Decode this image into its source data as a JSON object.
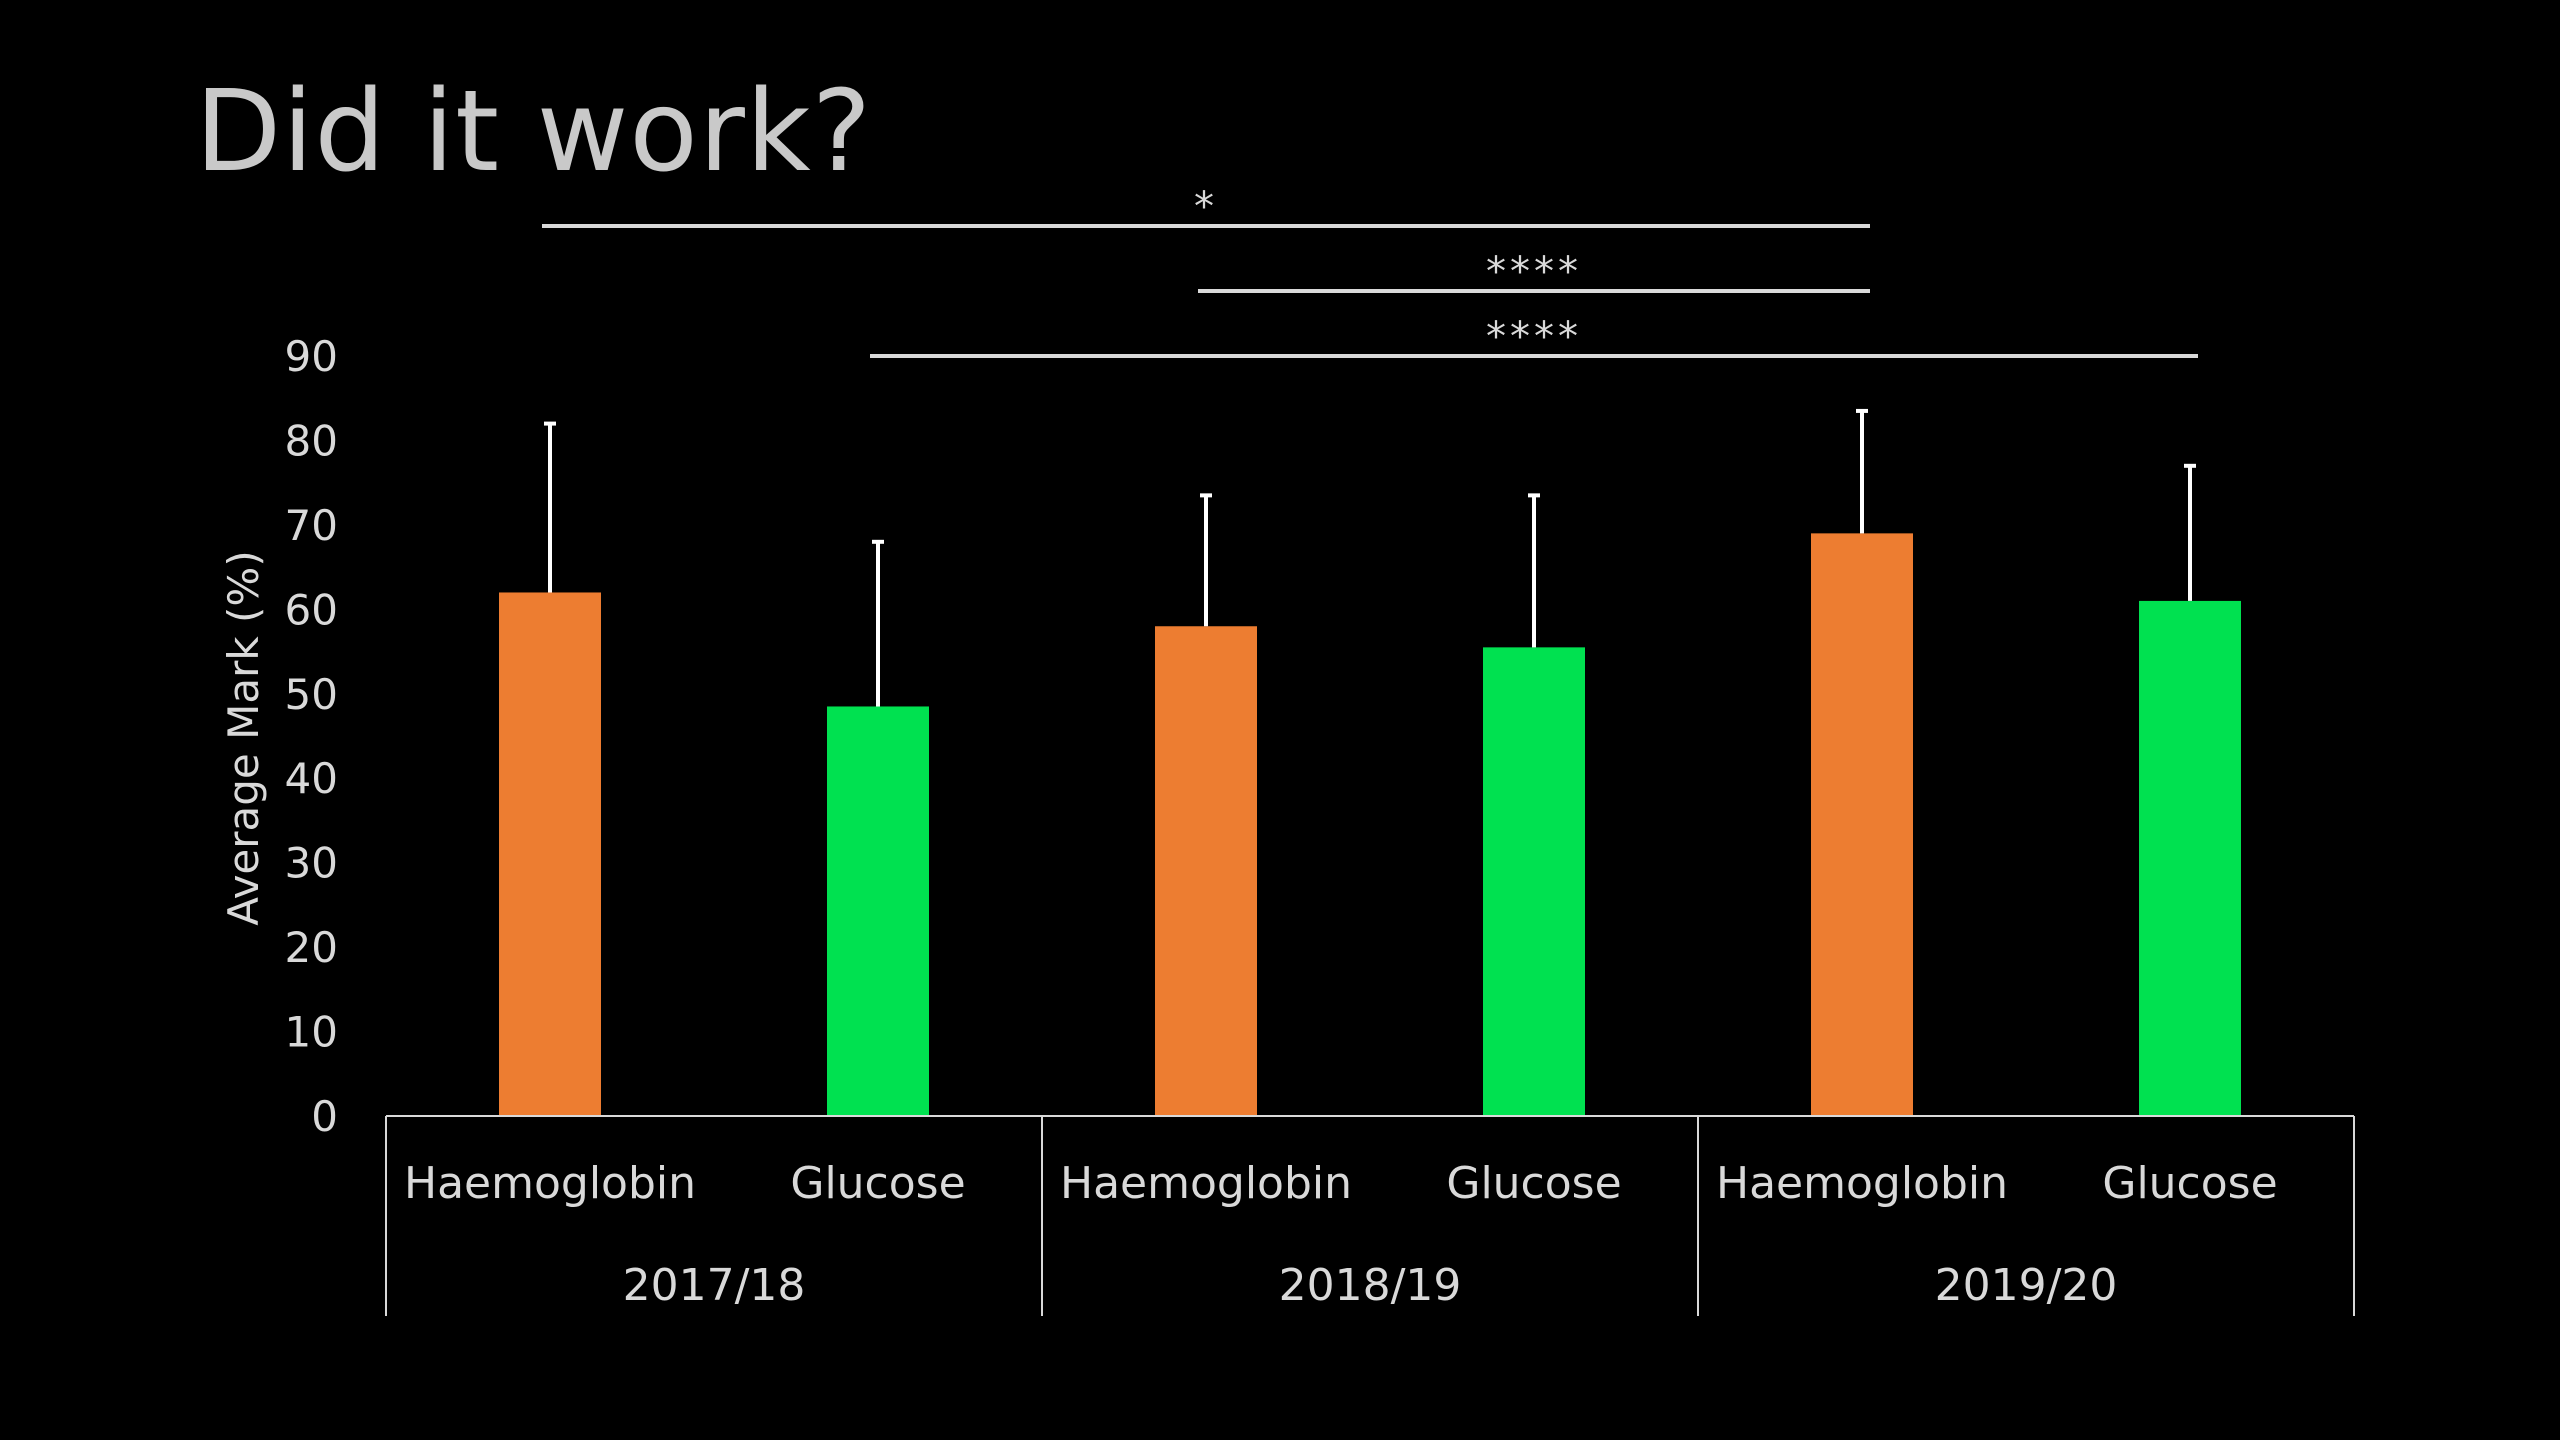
{
  "slide": {
    "title": "Did it work?"
  },
  "colors": {
    "background": "#000000",
    "haemoglobin": "#ed7d31",
    "glucose": "#00e150",
    "axis": "#d9d9d9",
    "text": "#d9d9d9",
    "title": "#c9c9c9"
  },
  "chart_data": {
    "type": "bar",
    "ylabel": "Average Mark (%)",
    "ylim": [
      0,
      90
    ],
    "yticks": [
      0,
      10,
      20,
      30,
      40,
      50,
      60,
      70,
      80,
      90
    ],
    "grid": false,
    "legend": "none",
    "groups": [
      "2017/18",
      "2018/19",
      "2019/20"
    ],
    "bars": [
      {
        "group": "2017/18",
        "category": "Haemoglobin",
        "value": 62,
        "error": 20,
        "color": "#ed7d31"
      },
      {
        "group": "2017/18",
        "category": "Glucose",
        "value": 48.5,
        "error": 19.5,
        "color": "#00e150"
      },
      {
        "group": "2018/19",
        "category": "Haemoglobin",
        "value": 58,
        "error": 15.5,
        "color": "#ed7d31"
      },
      {
        "group": "2018/19",
        "category": "Glucose",
        "value": 55.5,
        "error": 18,
        "color": "#00e150"
      },
      {
        "group": "2019/20",
        "category": "Haemoglobin",
        "value": 69,
        "error": 14.5,
        "color": "#ed7d31"
      },
      {
        "group": "2019/20",
        "category": "Glucose",
        "value": 61,
        "error": 16,
        "color": "#00e150"
      }
    ],
    "significance": [
      {
        "from": 0,
        "to": 4,
        "label": "*"
      },
      {
        "from": 2,
        "to": 4,
        "label": "****"
      },
      {
        "from": 1,
        "to": 5,
        "label": "****"
      }
    ]
  }
}
